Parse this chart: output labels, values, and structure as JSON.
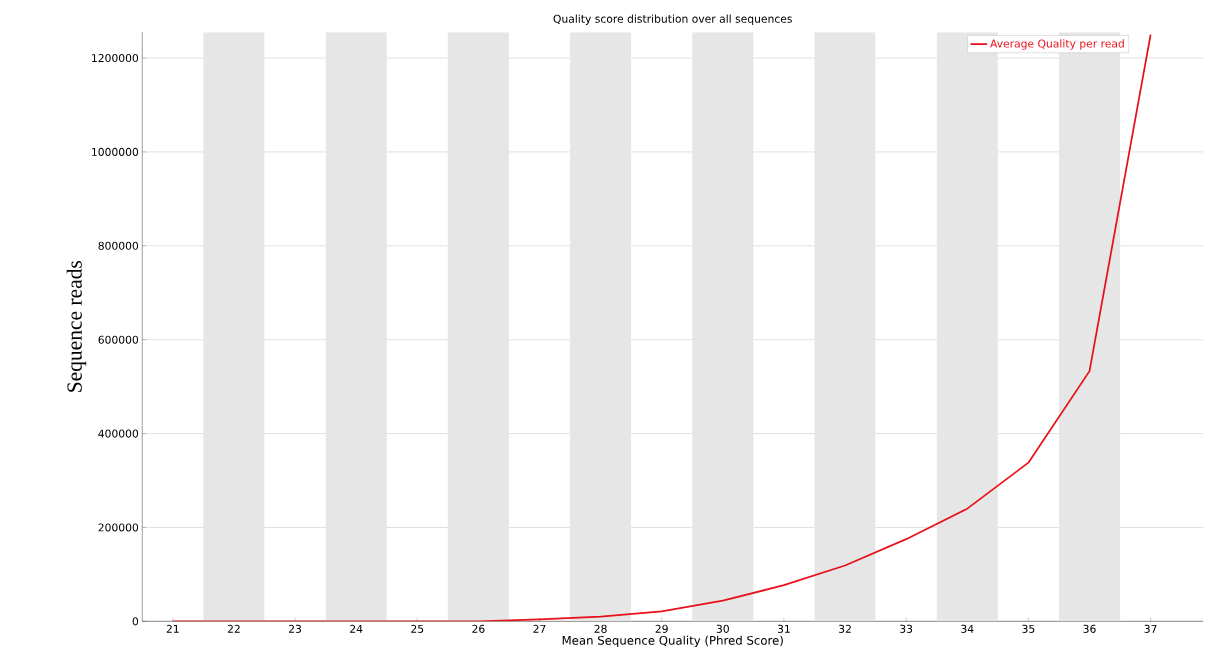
{
  "chart_data": {
    "type": "line",
    "title": "Quality score distribution over all sequences",
    "xlabel": "Mean Sequence Quality (Phred Score)",
    "ylabel": "Sequence reads",
    "x": [
      21,
      22,
      23,
      24,
      25,
      26,
      27,
      28,
      29,
      30,
      31,
      32,
      33,
      34,
      35,
      36,
      37
    ],
    "series": [
      {
        "name": "Average Quality per read",
        "color": "#e8101b",
        "values": [
          0,
          0,
          0,
          0,
          0,
          0,
          4000,
          10000,
          21000,
          44000,
          77000,
          119000,
          175000,
          240000,
          338000,
          533000,
          1250000
        ]
      }
    ],
    "xlim": [
      20.5,
      37.86
    ],
    "ylim": [
      0,
      1255000
    ],
    "xticks": [
      21,
      22,
      23,
      24,
      25,
      26,
      27,
      28,
      29,
      30,
      31,
      32,
      33,
      34,
      35,
      36,
      37
    ],
    "yticks": [
      0,
      200000,
      400000,
      600000,
      800000,
      1000000,
      1200000
    ],
    "bands": [
      {
        "axis": "x",
        "from": 21.5,
        "to": 22.5,
        "color": "#e6e6e6"
      },
      {
        "axis": "x",
        "from": 23.5,
        "to": 24.5,
        "color": "#e6e6e6"
      },
      {
        "axis": "x",
        "from": 25.5,
        "to": 26.5,
        "color": "#e6e6e6"
      },
      {
        "axis": "x",
        "from": 27.5,
        "to": 28.5,
        "color": "#e6e6e6"
      },
      {
        "axis": "x",
        "from": 29.5,
        "to": 30.5,
        "color": "#e6e6e6"
      },
      {
        "axis": "x",
        "from": 31.5,
        "to": 32.5,
        "color": "#e6e6e6"
      },
      {
        "axis": "x",
        "from": 33.5,
        "to": 34.5,
        "color": "#e6e6e6"
      },
      {
        "axis": "x",
        "from": 35.5,
        "to": 36.5,
        "color": "#e6e6e6"
      }
    ],
    "grid": "y",
    "legend": "top right",
    "marker": "none",
    "line_style": "solid"
  }
}
